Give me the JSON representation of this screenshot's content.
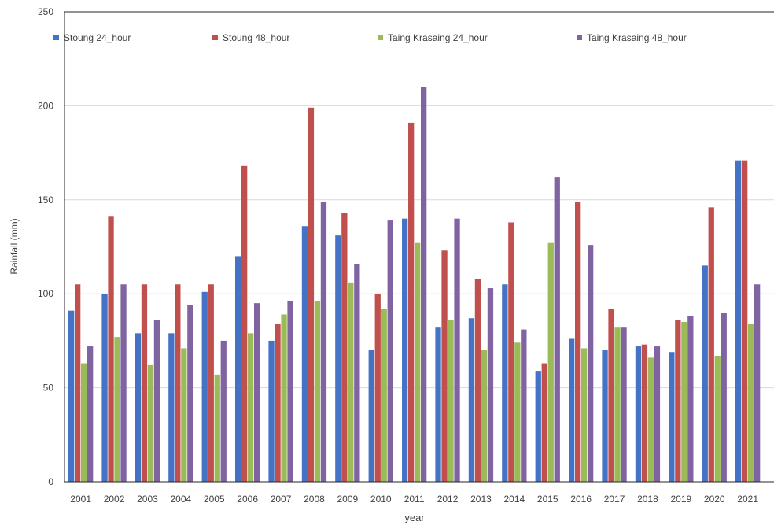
{
  "chart_data": {
    "type": "bar",
    "title": "",
    "xlabel": "year",
    "ylabel": "Rainfall (mm)",
    "ylim": [
      0,
      250
    ],
    "yticks": [
      "0",
      "50",
      "100",
      "150",
      "200",
      "250"
    ],
    "grid": "horizontal",
    "legend_position": "top",
    "categories": [
      "2001",
      "2002",
      "2003",
      "2004",
      "2005",
      "2006",
      "2007",
      "2008",
      "2009",
      "2010",
      "2011",
      "2012",
      "2013",
      "2014",
      "2015",
      "2016",
      "2017",
      "2018",
      "2019",
      "2020",
      "2021"
    ],
    "series": [
      {
        "name": "Stoung 24_hour",
        "color": "#4472C4",
        "values": [
          91,
          100,
          79,
          79,
          101,
          120,
          75,
          136,
          131,
          70,
          140,
          82,
          87,
          105,
          59,
          76,
          70,
          72,
          69,
          115,
          171
        ]
      },
      {
        "name": "Stoung 48_hour",
        "color": "#C0504D",
        "values": [
          105,
          141,
          105,
          105,
          105,
          168,
          84,
          199,
          143,
          100,
          191,
          123,
          108,
          138,
          63,
          149,
          92,
          73,
          86,
          146,
          171
        ]
      },
      {
        "name": "Taing Krasaing 24_hour",
        "color": "#9BBB59",
        "values": [
          63,
          77,
          62,
          71,
          57,
          79,
          89,
          96,
          106,
          92,
          127,
          86,
          70,
          74,
          127,
          71,
          82,
          66,
          85,
          67,
          84
        ]
      },
      {
        "name": "Taing Krasaing 48_hour",
        "color": "#8064A2",
        "values": [
          72,
          105,
          86,
          94,
          75,
          95,
          96,
          149,
          116,
          139,
          210,
          140,
          103,
          81,
          162,
          126,
          82,
          72,
          88,
          90,
          105
        ]
      }
    ]
  }
}
